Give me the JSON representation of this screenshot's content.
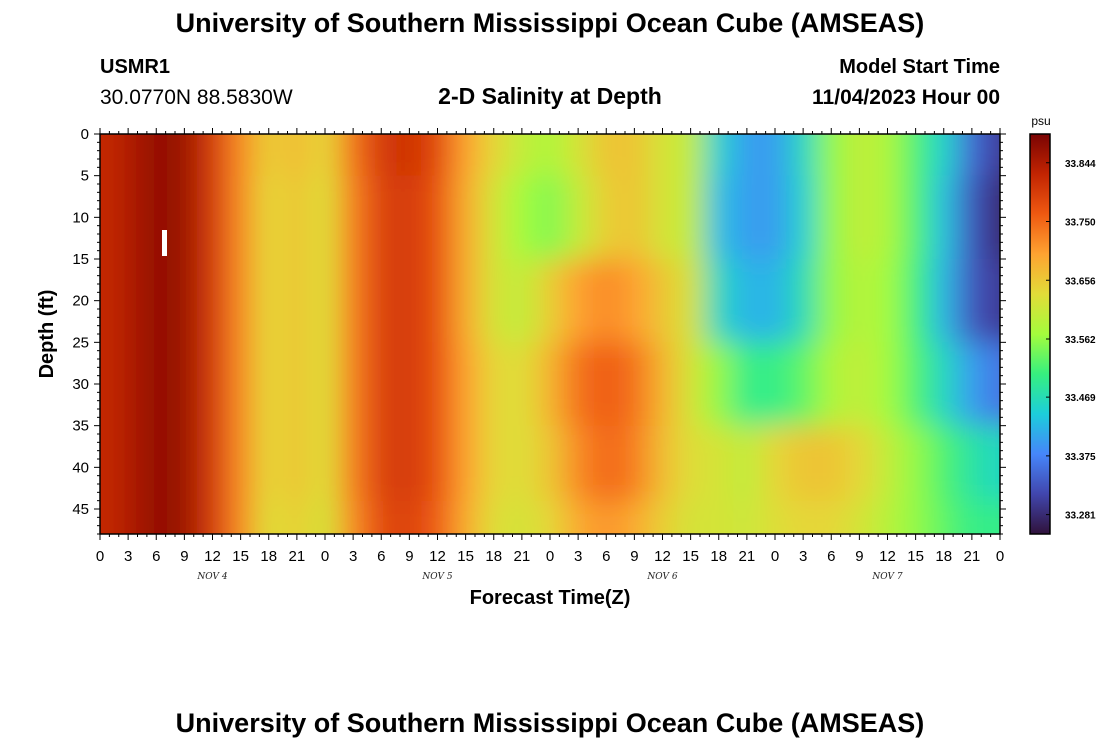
{
  "header": {
    "title": "University of Southern Mississippi Ocean Cube (AMSEAS)",
    "station_id": "USMR1",
    "coords": "30.0770N  88.5830W",
    "subtitle": "2-D Salinity at Depth",
    "model_start_label": "Model Start Time",
    "model_start_value": "11/04/2023 Hour 00"
  },
  "footer": {
    "title": "University of Southern Mississippi Ocean Cube (AMSEAS)"
  },
  "chart_data": {
    "type": "heatmap",
    "xlabel": "Forecast Time(Z)",
    "ylabel": "Depth (ft)",
    "x_tick_labels": [
      "0",
      "3",
      "6",
      "9",
      "12",
      "15",
      "18",
      "21",
      "0",
      "3",
      "6",
      "9",
      "12",
      "15",
      "18",
      "21",
      "0",
      "3",
      "6",
      "9",
      "12",
      "15",
      "18",
      "21",
      "0",
      "3",
      "6",
      "9",
      "12",
      "15",
      "18",
      "21",
      "0"
    ],
    "x_range_hours": [
      0,
      96
    ],
    "day_labels": [
      {
        "label": "NOV 4",
        "hour": 12
      },
      {
        "label": "NOV 5",
        "hour": 36
      },
      {
        "label": "NOV 6",
        "hour": 60
      },
      {
        "label": "NOV 7",
        "hour": 84
      }
    ],
    "y_tick_labels": [
      "0",
      "5",
      "10",
      "15",
      "20",
      "25",
      "30",
      "35",
      "40",
      "45"
    ],
    "y_ticks": [
      0,
      5,
      10,
      15,
      20,
      25,
      30,
      35,
      40,
      45
    ],
    "y_range": [
      0,
      48
    ],
    "y_inverted": true,
    "colorbar": {
      "unit": "psu",
      "range": [
        33.25,
        33.89
      ],
      "ticks": [
        33.844,
        33.75,
        33.656,
        33.562,
        33.469,
        33.375,
        33.281
      ],
      "tick_labels": [
        "33.844",
        "33.750",
        "33.656",
        "33.562",
        "33.469",
        "33.375",
        "33.281"
      ],
      "colors": [
        "#30123b",
        "#4146ad",
        "#4686fa",
        "#1ccddb",
        "#36f07f",
        "#a4fc3c",
        "#e2dc38",
        "#fea331",
        "#ef5911",
        "#c22402",
        "#7a0403"
      ]
    },
    "depth_samples_ft": [
      0,
      10,
      20,
      30,
      40,
      48
    ],
    "time_samples_hours": [
      0,
      3,
      6,
      9,
      12,
      15,
      18,
      21,
      24,
      27,
      30,
      33,
      36,
      39,
      42,
      45,
      48,
      51,
      54,
      57,
      60,
      63,
      66,
      69,
      72,
      75,
      78,
      81,
      84,
      87,
      90,
      93,
      96
    ],
    "salinity_psu": [
      [
        33.82,
        33.84,
        33.87,
        33.86,
        33.8,
        33.72,
        33.65,
        33.67,
        33.64,
        33.74,
        33.8,
        33.81,
        33.78,
        33.7,
        33.64,
        33.6,
        33.58,
        33.62,
        33.66,
        33.66,
        33.62,
        33.6,
        33.45,
        33.4,
        33.4,
        33.46,
        33.56,
        33.6,
        33.58,
        33.52,
        33.45,
        33.35,
        33.3
      ],
      [
        33.82,
        33.84,
        33.87,
        33.86,
        33.8,
        33.72,
        33.64,
        33.66,
        33.63,
        33.73,
        33.79,
        33.8,
        33.77,
        33.69,
        33.62,
        33.57,
        33.55,
        33.6,
        33.65,
        33.66,
        33.62,
        33.6,
        33.43,
        33.4,
        33.4,
        33.45,
        33.56,
        33.6,
        33.58,
        33.52,
        33.43,
        33.33,
        33.28
      ],
      [
        33.82,
        33.84,
        33.87,
        33.86,
        33.8,
        33.72,
        33.64,
        33.66,
        33.63,
        33.73,
        33.79,
        33.8,
        33.77,
        33.69,
        33.62,
        33.6,
        33.65,
        33.7,
        33.72,
        33.7,
        33.66,
        33.62,
        33.46,
        33.42,
        33.42,
        33.47,
        33.56,
        33.59,
        33.57,
        33.51,
        33.42,
        33.33,
        33.3
      ],
      [
        33.82,
        33.84,
        33.87,
        33.86,
        33.8,
        33.72,
        33.64,
        33.66,
        33.63,
        33.73,
        33.79,
        33.8,
        33.77,
        33.7,
        33.64,
        33.63,
        33.68,
        33.74,
        33.76,
        33.74,
        33.68,
        33.62,
        33.56,
        33.5,
        33.5,
        33.53,
        33.58,
        33.6,
        33.57,
        33.52,
        33.46,
        33.4,
        33.36
      ],
      [
        33.82,
        33.84,
        33.87,
        33.86,
        33.8,
        33.72,
        33.64,
        33.66,
        33.63,
        33.73,
        33.79,
        33.8,
        33.77,
        33.7,
        33.64,
        33.63,
        33.66,
        33.72,
        33.75,
        33.73,
        33.67,
        33.63,
        33.62,
        33.6,
        33.64,
        33.66,
        33.66,
        33.64,
        33.6,
        33.56,
        33.52,
        33.48,
        33.46
      ],
      [
        33.82,
        33.84,
        33.87,
        33.86,
        33.8,
        33.72,
        33.63,
        33.65,
        33.62,
        33.72,
        33.78,
        33.79,
        33.76,
        33.69,
        33.63,
        33.62,
        33.64,
        33.69,
        33.71,
        33.69,
        33.65,
        33.62,
        33.62,
        33.61,
        33.63,
        33.64,
        33.64,
        33.62,
        33.59,
        33.56,
        33.53,
        33.5,
        33.5
      ]
    ]
  }
}
